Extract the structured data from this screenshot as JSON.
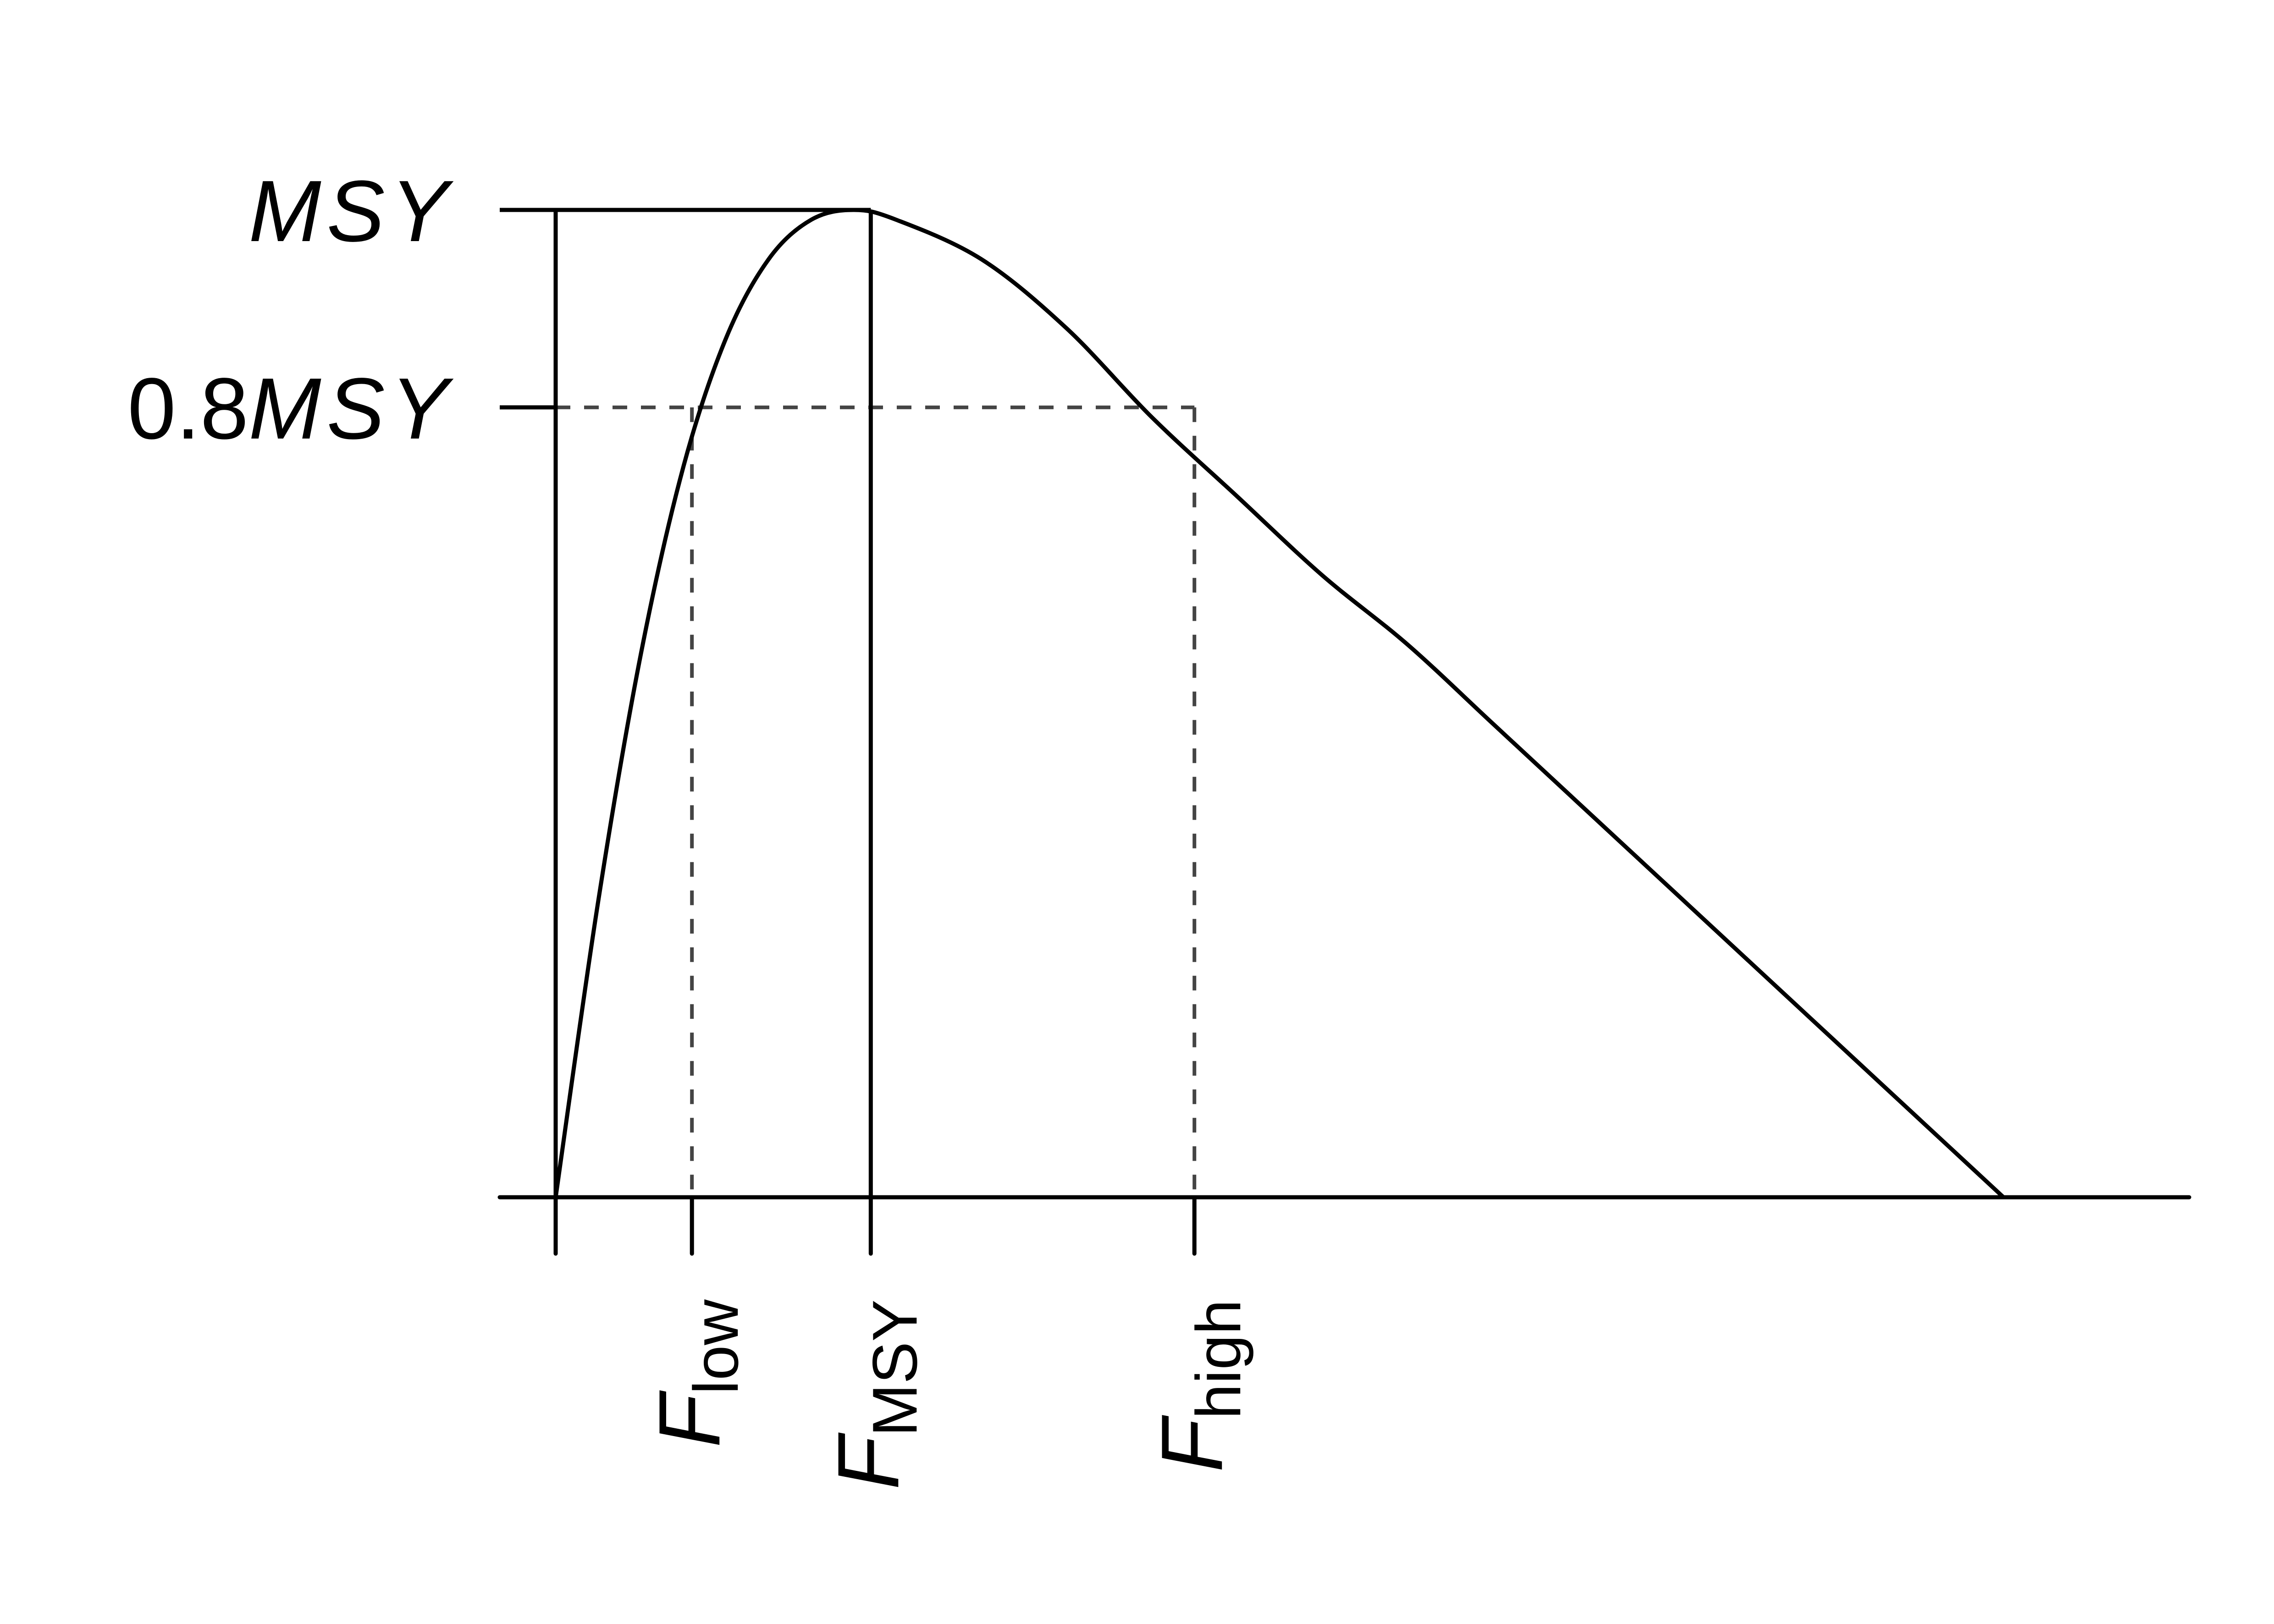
{
  "chart_data": {
    "type": "line",
    "title": "",
    "xlabel": "",
    "ylabel": "",
    "xlim": [
      0,
      1
    ],
    "ylim": [
      0,
      1
    ],
    "grid": false,
    "series": [
      {
        "x": [
          0.0,
          0.025,
          0.05,
          0.075,
          0.1,
          0.125,
          0.15,
          0.175,
          0.2,
          0.25,
          0.3,
          0.35,
          0.4,
          0.45,
          0.5,
          0.55,
          0.6,
          0.65,
          0.7,
          0.75,
          0.8,
          0.85,
          0.9,
          0.95,
          1.0
        ],
        "values": [
          0.0,
          0.3,
          0.55,
          0.74,
          0.87,
          0.95,
          0.99,
          1.0,
          0.99,
          0.95,
          0.88,
          0.79,
          0.71,
          0.63,
          0.56,
          0.48,
          0.4,
          0.32,
          0.24,
          0.16,
          0.08,
          0.0,
          0.0,
          0.0,
          0.0
        ]
      }
    ],
    "y_reference": [
      {
        "value": 1.0,
        "label_italic": "MSY",
        "label_prefix": ""
      },
      {
        "value": 0.8,
        "label_italic": "MSY",
        "label_prefix": "0.8"
      }
    ],
    "x_reference": [
      {
        "value": 0.0,
        "label_main": "",
        "label_sub": ""
      },
      {
        "value": 0.08,
        "label_main": "F",
        "label_sub": "low"
      },
      {
        "value": 0.185,
        "label_main": "F",
        "label_sub": "MSY"
      },
      {
        "value": 0.375,
        "label_main": "F",
        "label_sub": "high"
      }
    ]
  }
}
